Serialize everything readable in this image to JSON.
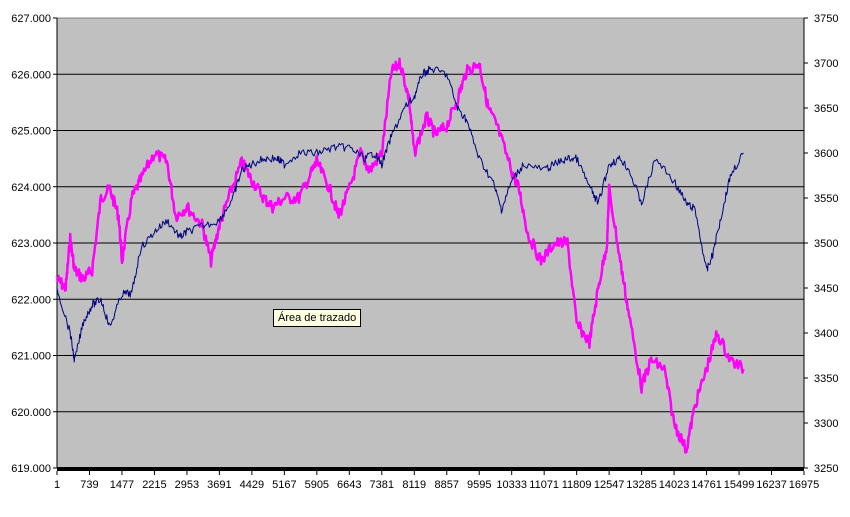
{
  "tooltip": "Área de trazado",
  "colors": {
    "plot_bg": "#c0c0c0",
    "series_left": "#000080",
    "series_right": "#ff00ff",
    "axis": "#000000",
    "grid": "#000000"
  },
  "chart_data": {
    "type": "line",
    "grid": true,
    "legend": "none",
    "xlim": [
      1,
      16975
    ],
    "x_tick_labels": [
      "1",
      "739",
      "1477",
      "2215",
      "2953",
      "3691",
      "4429",
      "5167",
      "5905",
      "6643",
      "7381",
      "8119",
      "8857",
      "9595",
      "10333",
      "11071",
      "11809",
      "12547",
      "13285",
      "14023",
      "14761",
      "15499",
      "16237",
      "16975"
    ],
    "y_left": {
      "ylim": [
        619,
        627
      ],
      "tick_labels": [
        "619.000",
        "620.000",
        "621.000",
        "622.000",
        "623.000",
        "624.000",
        "625.000",
        "626.000",
        "627.000"
      ]
    },
    "y_right": {
      "ylim": [
        3250,
        3750
      ],
      "tick_labels": [
        "3250",
        "3300",
        "3350",
        "3400",
        "3450",
        "3500",
        "3550",
        "3600",
        "3650",
        "3700",
        "3750"
      ]
    },
    "series": [
      {
        "axis": "left",
        "color": "#000080",
        "points": [
          [
            1,
            622.2
          ],
          [
            300,
            621.4
          ],
          [
            400,
            620.9
          ],
          [
            600,
            621.6
          ],
          [
            800,
            621.9
          ],
          [
            1000,
            622.0
          ],
          [
            1200,
            621.5
          ],
          [
            1477,
            622.1
          ],
          [
            1700,
            622.1
          ],
          [
            1900,
            622.9
          ],
          [
            2215,
            623.2
          ],
          [
            2500,
            623.4
          ],
          [
            2800,
            623.1
          ],
          [
            2953,
            623.2
          ],
          [
            3300,
            623.3
          ],
          [
            3691,
            623.4
          ],
          [
            4000,
            623.8
          ],
          [
            4200,
            624.3
          ],
          [
            4429,
            624.4
          ],
          [
            4700,
            624.5
          ],
          [
            5000,
            624.5
          ],
          [
            5167,
            624.4
          ],
          [
            5500,
            624.6
          ],
          [
            5905,
            624.6
          ],
          [
            6300,
            624.7
          ],
          [
            6643,
            624.7
          ],
          [
            7000,
            624.5
          ],
          [
            7200,
            624.6
          ],
          [
            7381,
            624.4
          ],
          [
            7600,
            624.9
          ],
          [
            7900,
            625.4
          ],
          [
            8119,
            625.6
          ],
          [
            8300,
            626.0
          ],
          [
            8500,
            626.1
          ],
          [
            8857,
            626.0
          ],
          [
            9100,
            625.4
          ],
          [
            9300,
            625.2
          ],
          [
            9595,
            624.5
          ],
          [
            9900,
            624.1
          ],
          [
            10100,
            623.6
          ],
          [
            10333,
            624.1
          ],
          [
            10600,
            624.4
          ],
          [
            11071,
            624.3
          ],
          [
            11300,
            624.4
          ],
          [
            11600,
            624.5
          ],
          [
            11809,
            624.5
          ],
          [
            12100,
            624.0
          ],
          [
            12300,
            623.7
          ],
          [
            12547,
            624.4
          ],
          [
            12800,
            624.5
          ],
          [
            13000,
            624.3
          ],
          [
            13285,
            623.7
          ],
          [
            13600,
            624.5
          ],
          [
            14023,
            624.1
          ],
          [
            14300,
            623.7
          ],
          [
            14500,
            623.6
          ],
          [
            14761,
            622.5
          ],
          [
            14900,
            622.8
          ],
          [
            15100,
            623.5
          ],
          [
            15300,
            624.2
          ],
          [
            15600,
            624.6
          ]
        ]
      },
      {
        "axis": "right",
        "color": "#ff00ff",
        "points": [
          [
            1,
            3460
          ],
          [
            200,
            3450
          ],
          [
            300,
            3505
          ],
          [
            400,
            3470
          ],
          [
            600,
            3460
          ],
          [
            800,
            3470
          ],
          [
            1000,
            3550
          ],
          [
            1200,
            3560
          ],
          [
            1400,
            3530
          ],
          [
            1477,
            3480
          ],
          [
            1700,
            3550
          ],
          [
            1900,
            3570
          ],
          [
            2215,
            3600
          ],
          [
            2500,
            3590
          ],
          [
            2700,
            3530
          ],
          [
            2953,
            3540
          ],
          [
            3300,
            3520
          ],
          [
            3500,
            3480
          ],
          [
            3691,
            3520
          ],
          [
            3900,
            3550
          ],
          [
            4200,
            3590
          ],
          [
            4429,
            3570
          ],
          [
            4700,
            3550
          ],
          [
            4900,
            3540
          ],
          [
            5167,
            3550
          ],
          [
            5500,
            3550
          ],
          [
            5800,
            3580
          ],
          [
            5905,
            3590
          ],
          [
            6200,
            3560
          ],
          [
            6400,
            3530
          ],
          [
            6643,
            3560
          ],
          [
            6900,
            3600
          ],
          [
            7100,
            3580
          ],
          [
            7381,
            3600
          ],
          [
            7600,
            3690
          ],
          [
            7800,
            3700
          ],
          [
            8000,
            3660
          ],
          [
            8119,
            3600
          ],
          [
            8400,
            3640
          ],
          [
            8600,
            3620
          ],
          [
            8857,
            3630
          ],
          [
            9100,
            3660
          ],
          [
            9300,
            3690
          ],
          [
            9595,
            3700
          ],
          [
            9800,
            3650
          ],
          [
            10000,
            3630
          ],
          [
            10333,
            3580
          ],
          [
            10500,
            3560
          ],
          [
            10700,
            3510
          ],
          [
            11000,
            3480
          ],
          [
            11300,
            3500
          ],
          [
            11600,
            3500
          ],
          [
            11809,
            3410
          ],
          [
            12100,
            3390
          ],
          [
            12300,
            3450
          ],
          [
            12500,
            3500
          ],
          [
            12547,
            3560
          ],
          [
            12800,
            3480
          ],
          [
            13000,
            3420
          ],
          [
            13285,
            3340
          ],
          [
            13500,
            3370
          ],
          [
            13800,
            3360
          ],
          [
            14023,
            3300
          ],
          [
            14300,
            3270
          ],
          [
            14500,
            3320
          ],
          [
            14761,
            3360
          ],
          [
            15000,
            3400
          ],
          [
            15300,
            3370
          ],
          [
            15600,
            3360
          ]
        ]
      }
    ]
  }
}
